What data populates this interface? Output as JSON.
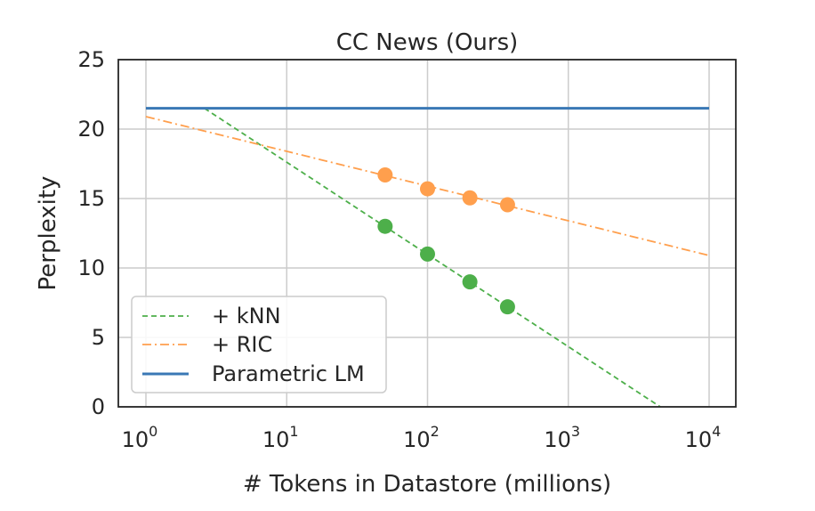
{
  "chart_data": {
    "type": "line",
    "title": "CC News (Ours)",
    "xlabel": "# Tokens in Datastore (millions)",
    "ylabel": "Perplexity",
    "x_scale": "log",
    "xlim": [
      1,
      10000
    ],
    "ylim": [
      0,
      25
    ],
    "x_ticks": [
      {
        "base": "10",
        "exp": "0",
        "value": 1
      },
      {
        "base": "10",
        "exp": "1",
        "value": 10
      },
      {
        "base": "10",
        "exp": "2",
        "value": 100
      },
      {
        "base": "10",
        "exp": "3",
        "value": 1000
      },
      {
        "base": "10",
        "exp": "4",
        "value": 10000
      }
    ],
    "y_ticks": [
      "0",
      "5",
      "10",
      "15",
      "20",
      "25"
    ],
    "grid": true,
    "legend_position": "lower-left",
    "series": [
      {
        "name": "+ kNN",
        "color": "#4daf4a",
        "line_style": "dashed",
        "fit_line": [
          [
            2.6,
            21.5
          ],
          [
            4500,
            0
          ]
        ],
        "points": [
          [
            50,
            13.0
          ],
          [
            100,
            11.0
          ],
          [
            200,
            9.0
          ],
          [
            370,
            7.2
          ]
        ]
      },
      {
        "name": "+ RIC",
        "color": "#ff9f4d",
        "line_style": "dashdot",
        "fit_line": [
          [
            1,
            20.9
          ],
          [
            10000,
            10.9
          ]
        ],
        "points": [
          [
            50,
            16.7
          ],
          [
            100,
            15.7
          ],
          [
            200,
            15.05
          ],
          [
            370,
            14.55
          ]
        ]
      },
      {
        "name": "Parametric LM",
        "color": "#3a78b5",
        "line_style": "solid",
        "fit_line": [
          [
            1,
            21.5
          ],
          [
            10000,
            21.5
          ]
        ],
        "points": []
      }
    ]
  }
}
